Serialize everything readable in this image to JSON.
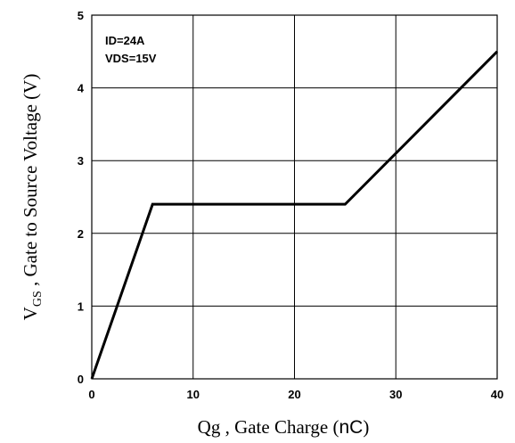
{
  "chart_data": {
    "type": "line",
    "title": "",
    "xlabel": {
      "main": "Qg , Gate Charge (",
      "unit": "nC",
      "close": ")"
    },
    "ylabel": {
      "symbol": "V",
      "subscript": "GS",
      "rest": " , Gate to Source Voltage (V)"
    },
    "xlim": [
      0,
      40
    ],
    "ylim": [
      0,
      5
    ],
    "xticks": [
      0,
      10,
      20,
      30,
      40
    ],
    "yticks": [
      0,
      1,
      2,
      3,
      4,
      5
    ],
    "xtick_labels": [
      "0",
      "10",
      "20",
      "30",
      "40"
    ],
    "ytick_labels": [
      "0",
      "1",
      "2",
      "3",
      "4",
      "5"
    ],
    "grid": true,
    "annotations": [
      "ID=24A",
      "VDS=15V"
    ],
    "series": [
      {
        "x": [
          0,
          6,
          25,
          40
        ],
        "y": [
          0,
          2.4,
          2.4,
          4.5
        ],
        "color": "#000000"
      }
    ]
  }
}
